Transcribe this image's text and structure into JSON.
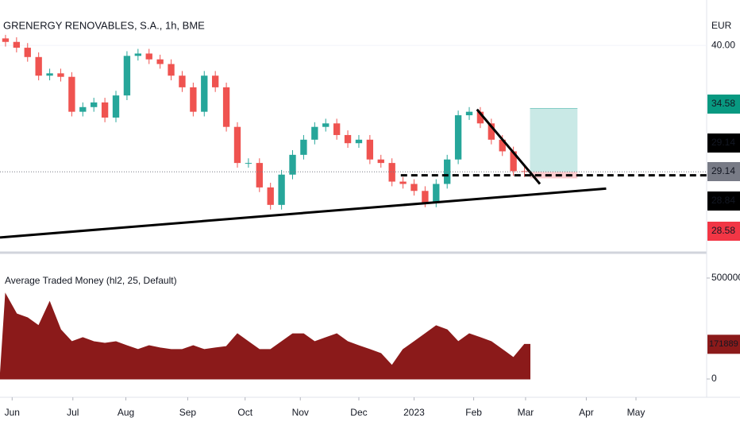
{
  "chart_data": [
    {
      "type": "candlestick",
      "title": "GRENERGY RENOVABLES, S.A., 1h, BME",
      "axis_label": "EUR",
      "categories": [
        null,
        null,
        null,
        null,
        null,
        null,
        null,
        null,
        null,
        null,
        null,
        null,
        null,
        null,
        null,
        null,
        null,
        null,
        null,
        null,
        null,
        null,
        null,
        null,
        null,
        null,
        null,
        null,
        null,
        null,
        null,
        null,
        null,
        null,
        null,
        null,
        null,
        null,
        null,
        null,
        null,
        null,
        null,
        null,
        null,
        null,
        null,
        null
      ],
      "open": [
        40.6,
        40.3,
        39.8,
        39.0,
        37.4,
        37.6,
        37.3,
        34.3,
        34.7,
        35.1,
        33.8,
        35.7,
        39.1,
        39.3,
        38.8,
        38.4,
        37.4,
        36.4,
        34.3,
        37.4,
        36.4,
        33.0,
        29.9,
        29.9,
        27.8,
        26.3,
        28.9,
        30.6,
        31.9,
        33.0,
        33.3,
        32.3,
        31.6,
        31.9,
        30.2,
        29.9,
        28.3,
        28.1,
        27.5,
        26.5,
        28.1,
        30.2,
        34.0,
        34.3,
        33.3,
        31.9,
        30.9,
        29.2
      ],
      "high": [
        41.0,
        40.7,
        40.2,
        39.4,
        38.0,
        38.0,
        37.7,
        35.1,
        35.5,
        35.5,
        36.1,
        39.5,
        39.7,
        39.7,
        39.2,
        38.8,
        37.8,
        36.8,
        37.8,
        37.8,
        36.8,
        33.4,
        30.3,
        30.3,
        28.2,
        29.3,
        31.0,
        32.3,
        33.4,
        33.7,
        33.7,
        32.7,
        32.3,
        32.3,
        30.6,
        30.3,
        28.7,
        28.5,
        27.9,
        28.5,
        30.6,
        34.4,
        34.7,
        34.7,
        33.7,
        32.3,
        31.3,
        29.6
      ],
      "low": [
        39.9,
        39.4,
        38.6,
        37.0,
        37.0,
        36.9,
        33.9,
        33.9,
        34.3,
        33.4,
        33.4,
        35.3,
        38.7,
        38.4,
        38.0,
        37.0,
        36.0,
        33.9,
        33.9,
        36.0,
        32.6,
        29.5,
        29.5,
        27.4,
        25.9,
        25.9,
        28.5,
        30.2,
        31.5,
        32.6,
        31.9,
        31.2,
        31.2,
        29.8,
        29.5,
        27.9,
        27.7,
        27.1,
        26.1,
        26.1,
        27.7,
        29.8,
        33.6,
        32.9,
        31.5,
        30.5,
        28.8,
        28.7
      ],
      "close": [
        40.3,
        39.8,
        39.0,
        37.4,
        37.6,
        37.3,
        34.3,
        34.7,
        35.1,
        33.8,
        35.7,
        39.1,
        39.3,
        38.8,
        38.4,
        37.4,
        36.4,
        34.3,
        37.4,
        36.4,
        33.0,
        29.9,
        29.9,
        27.8,
        26.3,
        28.9,
        30.6,
        31.9,
        33.0,
        33.3,
        32.3,
        31.6,
        31.9,
        30.2,
        29.9,
        28.3,
        28.1,
        27.5,
        26.5,
        28.1,
        30.2,
        34.0,
        34.3,
        33.3,
        31.9,
        30.9,
        29.2,
        29.14
      ],
      "up_color": "#26a69a",
      "down_color": "#ef5350",
      "xlim": [
        0,
        64
      ],
      "xticks": [
        {
          "value": 1.1,
          "label": "Jun"
        },
        {
          "value": 6.6,
          "label": "Jul"
        },
        {
          "value": 11.4,
          "label": "Aug"
        },
        {
          "value": 17.0,
          "label": "Sep"
        },
        {
          "value": 22.2,
          "label": "Oct"
        },
        {
          "value": 27.2,
          "label": "Nov"
        },
        {
          "value": 32.5,
          "label": "Dec"
        },
        {
          "value": 37.5,
          "label": "2023"
        },
        {
          "value": 42.9,
          "label": "Feb"
        },
        {
          "value": 47.6,
          "label": "Mar"
        },
        {
          "value": 53.1,
          "label": "Apr"
        },
        {
          "value": 57.6,
          "label": "May"
        }
      ],
      "ylim": [
        22.4,
        43.9
      ],
      "yticks": [
        {
          "value": 40,
          "label": "40.00"
        }
      ],
      "lines": [
        {
          "x": [
            0,
            54.9
          ],
          "y": [
            23.5,
            27.7
          ],
          "color": "#000000",
          "style": "solid"
        },
        {
          "x": [
            43.2,
            48.9
          ],
          "y": [
            34.5,
            28.1
          ],
          "color": "#000000",
          "style": "solid"
        },
        {
          "x": [
            36.3,
            64
          ],
          "y": [
            28.84,
            28.84
          ],
          "color": "#000000",
          "style": "dashed"
        },
        {
          "x": [
            0,
            64
          ],
          "y": [
            29.14,
            29.14
          ],
          "color": "#787b86",
          "style": "dotted"
        }
      ],
      "position": {
        "x": [
          48.0,
          52.3
        ],
        "target": 34.58,
        "entry": 29.14,
        "stop": 28.58
      },
      "price_labels": [
        {
          "value": 34.58,
          "color": "#089981"
        },
        {
          "value": 29.14,
          "color": "#000000"
        },
        {
          "value": 29.14,
          "color": "#787b86"
        },
        {
          "value": 28.84,
          "color": "#000000"
        },
        {
          "value": 28.58,
          "color": "#f23645"
        }
      ]
    },
    {
      "type": "area",
      "title": "Average Traded Money (hl2, 25, Default)",
      "color": "#8b1a1a",
      "values": [
        421000,
        323000,
        303000,
        264000,
        382000,
        244000,
        185000,
        205000,
        185000,
        177000,
        185000,
        165000,
        146000,
        165000,
        154000,
        146000,
        146000,
        165000,
        146000,
        154000,
        161000,
        224000,
        185000,
        146000,
        146000,
        185000,
        224000,
        224000,
        185000,
        205000,
        224000,
        185000,
        165000,
        146000,
        126000,
        67000,
        146000,
        185000,
        224000,
        264000,
        244000,
        185000,
        224000,
        205000,
        185000,
        146000,
        106000,
        171889
      ],
      "ylim": [
        -31500,
        610000
      ],
      "yticks": [
        0,
        500000
      ],
      "last_label_color": "#8b1a1a"
    }
  ]
}
